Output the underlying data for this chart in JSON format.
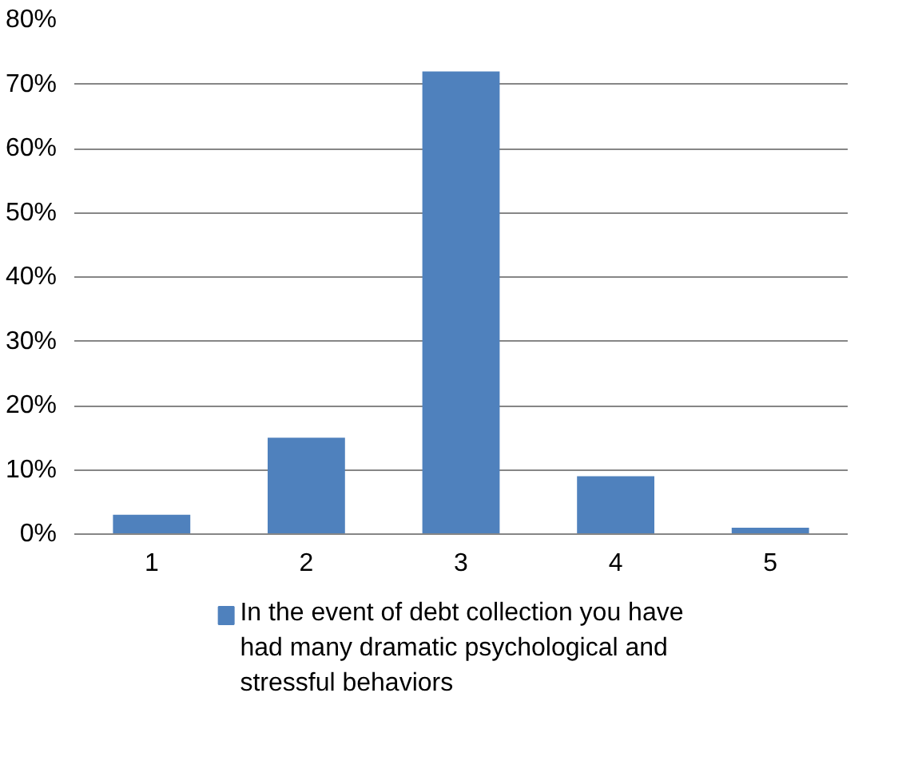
{
  "chart_data": {
    "type": "bar",
    "categories": [
      "1",
      "2",
      "3",
      "4",
      "5"
    ],
    "series": [
      {
        "name": "In the event of debt collection you have had many dramatic psychological and stressful behaviors",
        "color": "#4f81bd",
        "values": [
          3,
          15,
          72,
          9,
          1
        ]
      }
    ],
    "ylim": [
      0,
      80
    ],
    "yticks": [
      {
        "value": 0,
        "label": "0%"
      },
      {
        "value": 10,
        "label": "10%"
      },
      {
        "value": 20,
        "label": "20%"
      },
      {
        "value": 30,
        "label": "30%"
      },
      {
        "value": 40,
        "label": "40%"
      },
      {
        "value": 50,
        "label": "50%"
      },
      {
        "value": 60,
        "label": "60%"
      },
      {
        "value": 70,
        "label": "70%"
      },
      {
        "value": 80,
        "label": "80%"
      }
    ],
    "grid": "y",
    "legend": "bottom"
  }
}
